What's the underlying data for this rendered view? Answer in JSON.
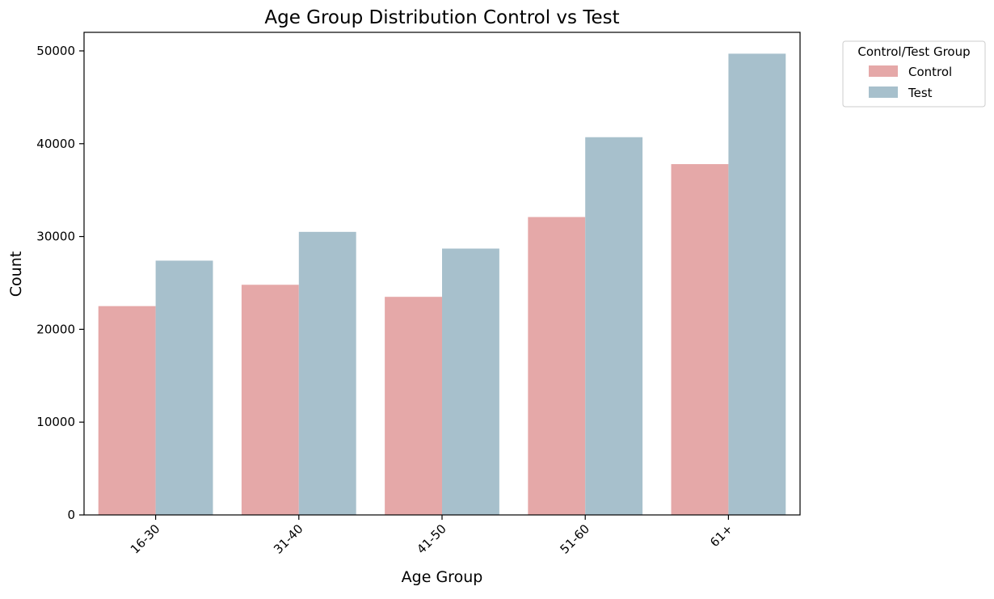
{
  "chart_data": {
    "type": "bar",
    "title": "Age Group Distribution Control vs Test",
    "xlabel": "Age Group",
    "ylabel": "Count",
    "categories": [
      "16-30",
      "31-40",
      "41-50",
      "51-60",
      "61+"
    ],
    "series": [
      {
        "name": "Control",
        "color": "#e5a8a8",
        "values": [
          22500,
          24800,
          23500,
          32100,
          37800
        ]
      },
      {
        "name": "Test",
        "color": "#a7c0cc",
        "values": [
          27400,
          30500,
          28700,
          40700,
          49700
        ]
      }
    ],
    "ylim": [
      0,
      52000
    ],
    "yticks": [
      0,
      10000,
      20000,
      30000,
      40000,
      50000
    ],
    "ytick_labels": [
      "0",
      "10000",
      "20000",
      "30000",
      "40000",
      "50000"
    ],
    "grid": false,
    "x_tick_rotation_deg": 45,
    "legend": {
      "title": "Control/Test Group",
      "placement": "outside-top-right"
    }
  }
}
